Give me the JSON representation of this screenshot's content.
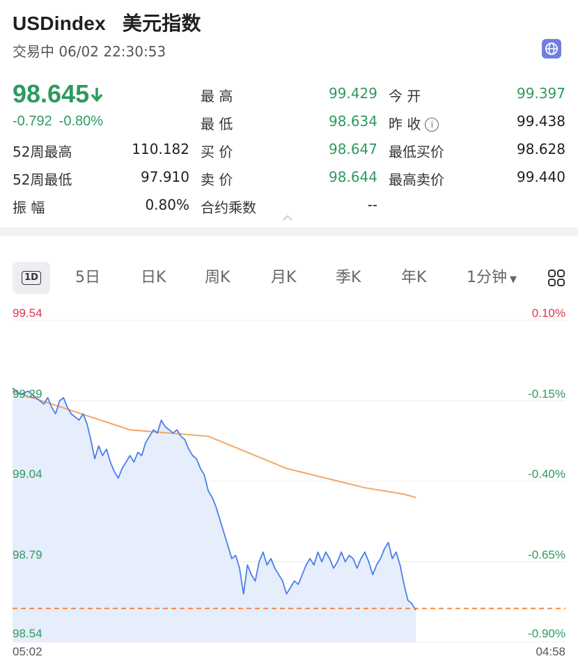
{
  "header": {
    "symbol": "USDindex",
    "name": "美元指数",
    "status": "交易中 06/02 22:30:53",
    "price": "98.645",
    "change": "-0.792",
    "change_pct": "-0.80%"
  },
  "stats": {
    "high_label": "最 高",
    "high": "99.429",
    "open_label": "今 开",
    "open": "99.397",
    "low_label": "最 低",
    "low": "98.634",
    "prev_close_label": "昨 收",
    "prev_close": "99.438",
    "wk52_high_label": "52周最高",
    "wk52_high": "110.182",
    "bid_label": "买 价",
    "bid": "98.647",
    "min_bid_label": "最低买价",
    "min_bid": "98.628",
    "wk52_low_label": "52周最低",
    "wk52_low": "97.910",
    "ask_label": "卖 价",
    "ask": "98.644",
    "max_ask_label": "最高卖价",
    "max_ask": "99.440",
    "amplitude_label": "振 幅",
    "amplitude": "0.80%",
    "multiplier_label": "合约乘数",
    "multiplier": "--"
  },
  "tabs": [
    "5日",
    "日K",
    "周K",
    "月K",
    "季K",
    "年K",
    "1分钟"
  ],
  "active_tab": "1D",
  "colors": {
    "up": "#e0334a",
    "down": "#2e9a5f",
    "line": "#4a7fe8",
    "avg": "#f0a868",
    "fill": "#e6edfb",
    "ref": "#f07a2a"
  },
  "chart_data": {
    "type": "area",
    "y_left_labels": [
      "99.54",
      "99.29",
      "99.04",
      "98.79",
      "98.54"
    ],
    "y_right_labels": [
      "0.10%",
      "-0.15%",
      "-0.40%",
      "-0.65%",
      "-0.90%"
    ],
    "x_labels": [
      "05:02",
      "04:58"
    ],
    "ylim": [
      98.54,
      99.54
    ],
    "reference_line": 98.645,
    "price_series": [
      [
        0,
        99.33
      ],
      [
        2,
        99.31
      ],
      [
        4,
        99.32
      ],
      [
        6,
        99.3
      ],
      [
        8,
        99.28
      ],
      [
        9,
        99.3
      ],
      [
        10,
        99.27
      ],
      [
        11,
        99.25
      ],
      [
        12,
        99.29
      ],
      [
        13,
        99.3
      ],
      [
        14,
        99.27
      ],
      [
        15,
        99.25
      ],
      [
        16,
        99.24
      ],
      [
        17,
        99.23
      ],
      [
        18,
        99.25
      ],
      [
        19,
        99.22
      ],
      [
        20,
        99.17
      ],
      [
        21,
        99.11
      ],
      [
        22,
        99.15
      ],
      [
        23,
        99.12
      ],
      [
        24,
        99.14
      ],
      [
        25,
        99.1
      ],
      [
        26,
        99.07
      ],
      [
        27,
        99.05
      ],
      [
        28,
        99.08
      ],
      [
        29,
        99.1
      ],
      [
        30,
        99.12
      ],
      [
        31,
        99.1
      ],
      [
        32,
        99.13
      ],
      [
        33,
        99.12
      ],
      [
        34,
        99.16
      ],
      [
        35,
        99.18
      ],
      [
        36,
        99.2
      ],
      [
        37,
        99.19
      ],
      [
        38,
        99.23
      ],
      [
        39,
        99.21
      ],
      [
        40,
        99.2
      ],
      [
        41,
        99.19
      ],
      [
        42,
        99.2
      ],
      [
        43,
        99.18
      ],
      [
        44,
        99.17
      ],
      [
        45,
        99.14
      ],
      [
        46,
        99.12
      ],
      [
        47,
        99.11
      ],
      [
        48,
        99.08
      ],
      [
        49,
        99.06
      ],
      [
        50,
        99.01
      ],
      [
        51,
        98.99
      ],
      [
        52,
        98.96
      ],
      [
        53,
        98.92
      ],
      [
        54,
        98.88
      ],
      [
        55,
        98.84
      ],
      [
        56,
        98.8
      ],
      [
        57,
        98.81
      ],
      [
        58,
        98.77
      ],
      [
        59,
        98.69
      ],
      [
        60,
        98.78
      ],
      [
        61,
        98.75
      ],
      [
        62,
        98.73
      ],
      [
        63,
        98.79
      ],
      [
        64,
        98.82
      ],
      [
        65,
        98.78
      ],
      [
        66,
        98.8
      ],
      [
        67,
        98.77
      ],
      [
        68,
        98.75
      ],
      [
        69,
        98.73
      ],
      [
        70,
        98.69
      ],
      [
        71,
        98.71
      ],
      [
        72,
        98.73
      ],
      [
        73,
        98.72
      ],
      [
        74,
        98.75
      ],
      [
        75,
        98.78
      ],
      [
        76,
        98.8
      ],
      [
        77,
        98.78
      ],
      [
        78,
        98.82
      ],
      [
        79,
        98.79
      ],
      [
        80,
        98.82
      ],
      [
        81,
        98.8
      ],
      [
        82,
        98.77
      ],
      [
        83,
        98.79
      ],
      [
        84,
        98.82
      ],
      [
        85,
        98.79
      ],
      [
        86,
        98.81
      ],
      [
        87,
        98.8
      ],
      [
        88,
        98.77
      ],
      [
        89,
        98.8
      ],
      [
        90,
        98.82
      ],
      [
        91,
        98.79
      ],
      [
        92,
        98.75
      ],
      [
        93,
        98.78
      ],
      [
        94,
        98.8
      ],
      [
        95,
        98.83
      ],
      [
        96,
        98.85
      ],
      [
        97,
        98.8
      ],
      [
        98,
        98.82
      ],
      [
        99,
        98.78
      ],
      [
        100,
        98.72
      ],
      [
        101,
        98.67
      ],
      [
        102,
        98.66
      ],
      [
        103,
        98.64
      ]
    ],
    "avg_series": [
      [
        0,
        99.32
      ],
      [
        10,
        99.28
      ],
      [
        20,
        99.24
      ],
      [
        30,
        99.2
      ],
      [
        40,
        99.19
      ],
      [
        50,
        99.18
      ],
      [
        60,
        99.13
      ],
      [
        70,
        99.08
      ],
      [
        80,
        99.05
      ],
      [
        90,
        99.02
      ],
      [
        100,
        99.0
      ],
      [
        103,
        98.99
      ]
    ]
  }
}
